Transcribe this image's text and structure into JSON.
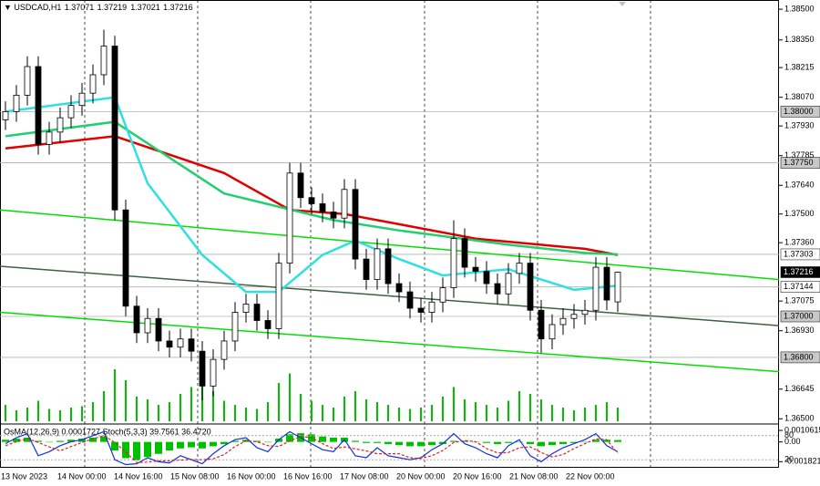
{
  "chart_data": {
    "type": "candlestick",
    "header": {
      "symbol": "USDCAD,H1",
      "open": "1.37071",
      "high": "1.37219",
      "low": "1.37021",
      "close": "1.37216"
    },
    "open": [
      1.3796,
      1.38,
      1.3808,
      1.3822,
      1.3784,
      1.379,
      1.3797,
      1.3803,
      1.3809,
      1.3818,
      1.3832,
      1.3752,
      1.3705,
      1.3692,
      1.3699,
      1.3688,
      1.3685,
      1.3689,
      1.3683,
      1.3666,
      1.3679,
      1.3688,
      1.3702,
      1.3706,
      1.3698,
      1.3694,
      1.3726,
      1.377,
      1.3758,
      1.3755,
      1.3751,
      1.3748,
      1.3762,
      1.3728,
      1.3718,
      1.3733,
      1.3716,
      1.3712,
      1.3704,
      1.3702,
      1.3707,
      1.3714,
      1.3738,
      1.3724,
      1.3722,
      1.3716,
      1.3711,
      1.3721,
      1.3726,
      1.3703,
      1.3689,
      1.3696,
      1.3699,
      1.3701,
      1.3703,
      1.3724,
      1.37071
    ],
    "high": [
      1.3805,
      1.3813,
      1.3827,
      1.3827,
      1.3795,
      1.3802,
      1.3808,
      1.3814,
      1.3823,
      1.384,
      1.3837,
      1.3757,
      1.371,
      1.3704,
      1.3704,
      1.3693,
      1.3694,
      1.3694,
      1.3688,
      1.3684,
      1.3693,
      1.3707,
      1.3711,
      1.3711,
      1.3703,
      1.3731,
      1.3775,
      1.3775,
      1.3763,
      1.376,
      1.3756,
      1.3767,
      1.3767,
      1.3733,
      1.3738,
      1.3738,
      1.3721,
      1.3717,
      1.3709,
      1.3712,
      1.3719,
      1.3747,
      1.3743,
      1.3729,
      1.3727,
      1.3721,
      1.3726,
      1.3731,
      1.3731,
      1.3708,
      1.3701,
      1.3704,
      1.3706,
      1.3708,
      1.3729,
      1.3729,
      1.37219
    ],
    "low": [
      1.3791,
      1.3795,
      1.3803,
      1.3779,
      1.3779,
      1.3785,
      1.3792,
      1.3798,
      1.3804,
      1.3813,
      1.3747,
      1.37,
      1.3687,
      1.3687,
      1.3683,
      1.368,
      1.368,
      1.3678,
      1.3659,
      1.3661,
      1.3674,
      1.3683,
      1.3697,
      1.3693,
      1.3689,
      1.3689,
      1.3721,
      1.3753,
      1.375,
      1.3746,
      1.3743,
      1.3743,
      1.3723,
      1.3713,
      1.3713,
      1.3711,
      1.3707,
      1.3699,
      1.3697,
      1.3697,
      1.3702,
      1.3709,
      1.3719,
      1.3717,
      1.3711,
      1.3706,
      1.3706,
      1.3716,
      1.3698,
      1.3682,
      1.3684,
      1.3691,
      1.3694,
      1.3696,
      1.3698,
      1.3703,
      1.37021
    ],
    "close": [
      1.38,
      1.3808,
      1.3822,
      1.3784,
      1.379,
      1.3797,
      1.3803,
      1.3809,
      1.3818,
      1.3832,
      1.3752,
      1.3705,
      1.3692,
      1.3699,
      1.3688,
      1.3685,
      1.3689,
      1.3683,
      1.3666,
      1.3679,
      1.3688,
      1.3702,
      1.3706,
      1.3698,
      1.3694,
      1.3726,
      1.377,
      1.3758,
      1.3755,
      1.3751,
      1.3748,
      1.3762,
      1.3728,
      1.3718,
      1.3733,
      1.3716,
      1.3712,
      1.3704,
      1.3702,
      1.3707,
      1.3714,
      1.3738,
      1.3724,
      1.3722,
      1.3716,
      1.3711,
      1.3721,
      1.3726,
      1.3703,
      1.3689,
      1.3696,
      1.3699,
      1.3701,
      1.3703,
      1.3724,
      1.3708,
      1.37216
    ],
    "volume": [
      12,
      8,
      10,
      15,
      9,
      8,
      10,
      11,
      14,
      22,
      38,
      30,
      18,
      16,
      12,
      14,
      20,
      25,
      35,
      22,
      15,
      12,
      10,
      9,
      14,
      28,
      35,
      20,
      15,
      12,
      10,
      18,
      22,
      16,
      14,
      12,
      10,
      9,
      10,
      12,
      18,
      25,
      16,
      14,
      12,
      10,
      15,
      22,
      20,
      16,
      12,
      10,
      8,
      10,
      12,
      14,
      10
    ],
    "volume_color": "#00c000",
    "ylim": [
      1.36488,
      1.38545
    ],
    "yticks": [
      {
        "value": 1.385,
        "label": "1.38500"
      },
      {
        "value": 1.3835,
        "label": "1.38350"
      },
      {
        "value": 1.38215,
        "label": "1.38215"
      },
      {
        "value": 1.3807,
        "label": "1.38070"
      },
      {
        "value": 1.3793,
        "label": "1.37930"
      },
      {
        "value": 1.37785,
        "label": "1.37785"
      },
      {
        "value": 1.3764,
        "label": "1.37640"
      },
      {
        "value": 1.375,
        "label": "1.37500"
      },
      {
        "value": 1.3736,
        "label": "1.37360"
      },
      {
        "value": 1.37075,
        "label": "1.37075"
      },
      {
        "value": 1.3693,
        "label": "1.36930"
      },
      {
        "value": 1.36645,
        "label": "1.36645"
      },
      {
        "value": 1.365,
        "label": "1.36500"
      }
    ],
    "levels": [
      {
        "value": 1.38,
        "label": "1.38000",
        "color": "#c8c8c8"
      },
      {
        "value": 1.3775,
        "label": "1.37750",
        "color": "#c8c8c8"
      },
      {
        "value": 1.37303,
        "label": "1.37303",
        "color": "#ffffff"
      },
      {
        "value": 1.37216,
        "label": "1.37216",
        "color": "#000000"
      },
      {
        "value": 1.37144,
        "label": "1.37144",
        "color": "#ffffff"
      },
      {
        "value": 1.37,
        "label": "1.37000",
        "color": "#c8c8c8"
      },
      {
        "value": 1.368,
        "label": "1.36800",
        "color": "#c8c8c8"
      }
    ],
    "moving_averages": [
      {
        "color": "#e00000",
        "x": [
          0,
          10,
          20,
          26,
          31,
          36,
          43,
          53,
          56
        ],
        "values": [
          1.3782,
          1.3788,
          1.377,
          1.3752,
          1.375,
          1.3745,
          1.3738,
          1.3733,
          1.373
        ]
      },
      {
        "color": "#20d070",
        "x": [
          0,
          10,
          20,
          30,
          36,
          46,
          53,
          56
        ],
        "values": [
          1.3788,
          1.3795,
          1.376,
          1.3747,
          1.3742,
          1.3735,
          1.3731,
          1.37303
        ]
      },
      {
        "color": "#30e0e0",
        "x": [
          0,
          10,
          13,
          18,
          22,
          25,
          29,
          32,
          36,
          40,
          46,
          52,
          56
        ],
        "values": [
          1.38,
          1.3807,
          1.3765,
          1.373,
          1.3712,
          1.3712,
          1.373,
          1.3737,
          1.3728,
          1.372,
          1.3723,
          1.3713,
          1.3715
        ]
      }
    ],
    "trendlines": [
      {
        "color": "#00e000",
        "x": [
          -0.5,
          70.75
        ],
        "values": [
          1.3752,
          1.3718
        ]
      },
      {
        "color": "#00e000",
        "x": [
          -0.5,
          70.75
        ],
        "values": [
          1.3702,
          1.3673
        ]
      },
      {
        "color": "#406040",
        "x": [
          -0.5,
          70.75
        ],
        "values": [
          1.37245,
          1.36955
        ]
      }
    ],
    "x_labels": [
      "13 Nov 2023",
      "14 Nov 00:00",
      "14 Nov 16:00",
      "15 Nov 08:00",
      "16 Nov 00:00",
      "16 Nov 16:00",
      "17 Nov 08:00",
      "20 Nov 00:00",
      "20 Nov 16:00",
      "21 Nov 08:00",
      "22 Nov 00:00"
    ],
    "oscillator": {
      "title": "OsMA(12,26,9) 0.0001727  Stoch(5,3,3) 39.7561 36.4720",
      "osma": {
        "color": "#00c000",
        "ylim": [
          -0.0023,
          0.0014
        ],
        "values": [
          0.0002,
          0.0003,
          0.0004,
          0.0001,
          0,
          0.0001,
          0.0002,
          0.0003,
          0.0004,
          0.0005,
          -0.0008,
          -0.0015,
          -0.0017,
          -0.0014,
          -0.0011,
          -0.0008,
          -0.0006,
          -0.0005,
          -0.0006,
          -0.0004,
          -0.0002,
          0.0001,
          0.0002,
          0.0001,
          0,
          0.0003,
          0.0007,
          0.0008,
          0.0007,
          0.0005,
          0.0004,
          0.0004,
          0.0001,
          -0.0001,
          -0.0001,
          -0.0002,
          -0.0003,
          -0.0004,
          -0.0004,
          -0.0003,
          -0.0002,
          0.0001,
          0.0001,
          0,
          -0.0001,
          -0.0002,
          -0.0001,
          0,
          -0.0002,
          -0.0004,
          -0.0003,
          -0.0002,
          -0.0001,
          0,
          0.0002,
          0.0002,
          0.0001727
        ],
        "yticks": [
          0.0010615,
          {
            "value": 0,
            "label": "0.00"
          },
          -0.001821
        ]
      },
      "stoch": {
        "ylim": [
          0,
          100
        ],
        "yticks": [
          80,
          20
        ],
        "main": {
          "color": "#1030e0",
          "values": [
            60,
            75,
            85,
            30,
            40,
            55,
            65,
            70,
            80,
            90,
            20,
            8,
            10,
            25,
            15,
            12,
            30,
            20,
            10,
            35,
            55,
            70,
            75,
            50,
            40,
            70,
            90,
            75,
            60,
            45,
            40,
            70,
            30,
            25,
            50,
            30,
            25,
            20,
            25,
            45,
            60,
            85,
            60,
            50,
            35,
            25,
            55,
            70,
            30,
            15,
            35,
            50,
            60,
            70,
            85,
            55,
            39.7561
          ]
        },
        "signal": {
          "color": "#e02020",
          "values": [
            55,
            65,
            73,
            63,
            52,
            42,
            53,
            63,
            72,
            80,
            63,
            39,
            13,
            14,
            17,
            17,
            19,
            21,
            20,
            22,
            33,
            53,
            67,
            65,
            55,
            53,
            67,
            78,
            75,
            60,
            48,
            52,
            47,
            42,
            35,
            35,
            35,
            25,
            23,
            30,
            43,
            63,
            68,
            65,
            48,
            37,
            38,
            50,
            52,
            38,
            27,
            33,
            48,
            60,
            72,
            70,
            36.472
          ]
        }
      }
    }
  }
}
